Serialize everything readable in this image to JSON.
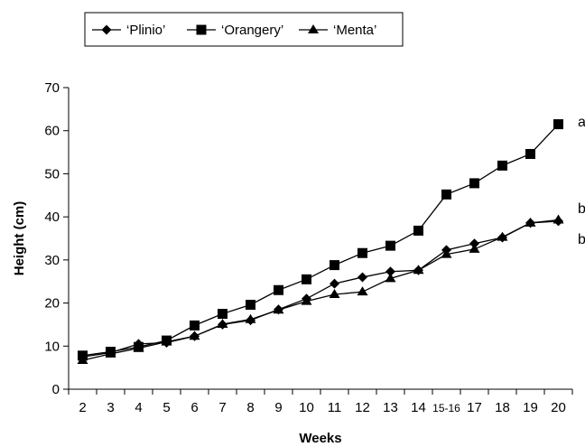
{
  "chart_data": {
    "type": "line",
    "xlabel": "Weeks",
    "ylabel": "Height (cm)",
    "ylim": [
      0,
      70
    ],
    "yticks": [
      0,
      10,
      20,
      30,
      40,
      50,
      60,
      70
    ],
    "categories": [
      "2",
      "3",
      "4",
      "5",
      "6",
      "7",
      "8",
      "9",
      "10",
      "11",
      "12",
      "13",
      "14",
      "15-16",
      "17",
      "18",
      "19",
      "20"
    ],
    "grid": false,
    "legend_position": "top-left",
    "series": [
      {
        "name": "‘Plinio’",
        "marker": "diamond",
        "values": [
          7.5,
          8.5,
          10.5,
          10.8,
          12.3,
          15.0,
          16.0,
          18.5,
          21.0,
          24.5,
          26.0,
          27.3,
          27.6,
          32.3,
          33.8,
          35.2,
          38.6,
          39.0
        ]
      },
      {
        "name": "‘Orangery’",
        "marker": "square",
        "values": [
          7.8,
          8.7,
          9.8,
          11.3,
          14.8,
          17.5,
          19.6,
          23.0,
          25.5,
          28.8,
          31.6,
          33.3,
          36.8,
          45.2,
          47.8,
          51.9,
          54.6,
          61.5
        ]
      },
      {
        "name": "‘Menta’",
        "marker": "triangle",
        "values": [
          6.7,
          8.2,
          9.5,
          11.0,
          12.3,
          15.1,
          16.2,
          18.4,
          20.4,
          22.0,
          22.6,
          25.7,
          27.6,
          31.3,
          32.5,
          35.3,
          38.6,
          39.3
        ]
      }
    ],
    "annotations": [
      "a",
      "b",
      "b"
    ]
  }
}
